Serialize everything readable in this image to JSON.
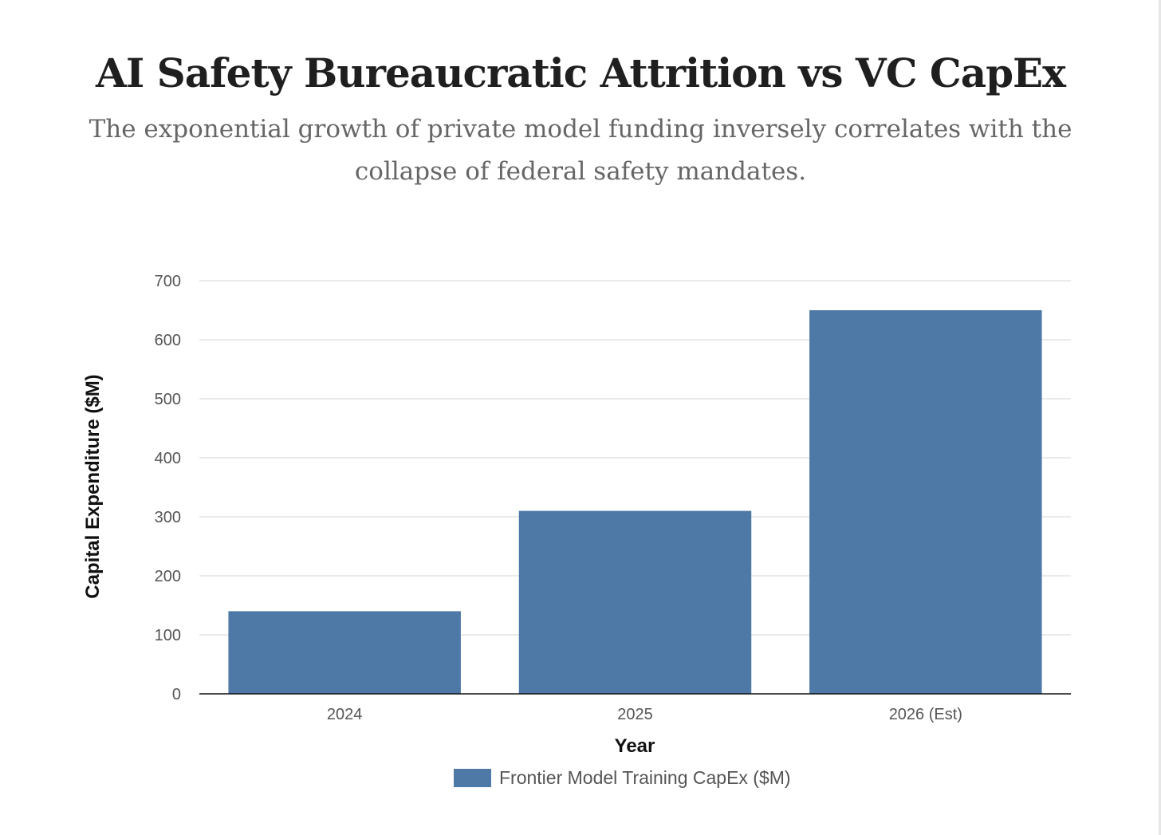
{
  "chart_data": {
    "type": "bar",
    "title": "AI Safety Bureaucratic Attrition vs VC CapEx",
    "subtitle": "The exponential growth of private model funding inversely correlates with the collapse of federal safety mandates.",
    "categories": [
      "2024",
      "2025",
      "2026 (Est)"
    ],
    "series": [
      {
        "name": "Frontier Model Training CapEx ($M)",
        "values": [
          140,
          310,
          650
        ]
      }
    ],
    "xlabel": "Year",
    "ylabel": "Capital Expenditure ($M)",
    "ylim": [
      0,
      700
    ],
    "yticks": [
      0,
      100,
      200,
      300,
      400,
      500,
      600,
      700
    ],
    "grid": true,
    "legend": "bottom",
    "colors": {
      "bar": "#4e78a6",
      "grid": "#e3e3e3",
      "axis": "#111111"
    }
  }
}
